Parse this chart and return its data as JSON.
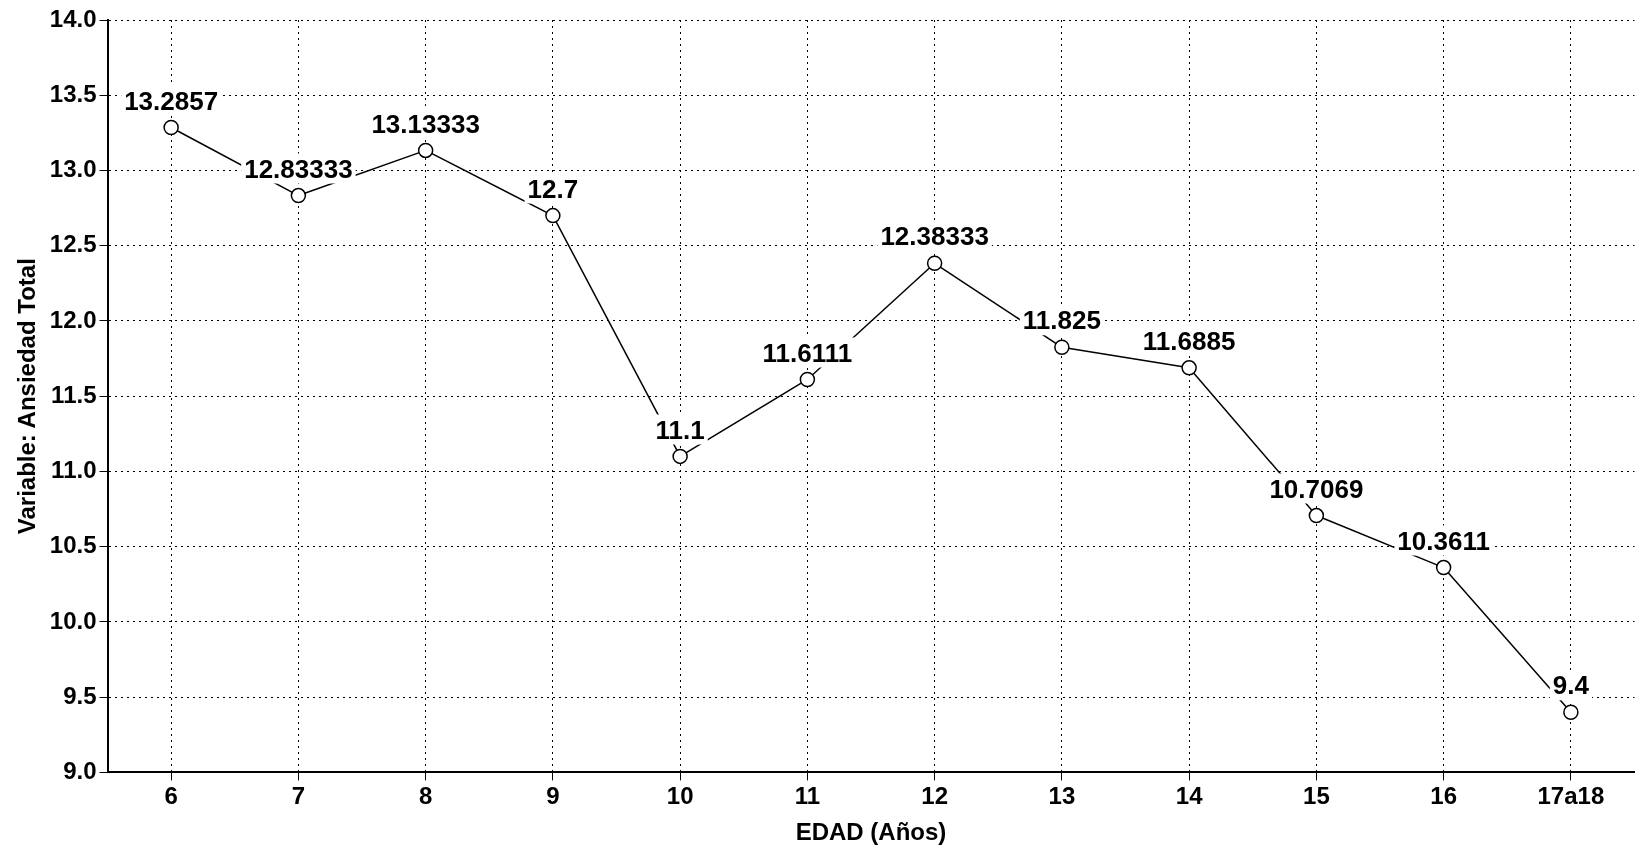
{
  "chart_data": {
    "type": "line",
    "xlabel": "EDAD (Años)",
    "ylabel": "Variable: Ansiedad Total",
    "categories": [
      "6",
      "7",
      "8",
      "9",
      "10",
      "11",
      "12",
      "13",
      "14",
      "15",
      "16",
      "17a18"
    ],
    "values": [
      13.2857,
      12.83333,
      13.13333,
      12.7,
      11.1,
      11.6111,
      12.38333,
      11.825,
      11.6885,
      10.7069,
      10.3611,
      9.4
    ],
    "color": "#000000",
    "ylim": [
      9,
      14
    ],
    "yticks": [
      {
        "value": 9,
        "label": "9.0"
      },
      {
        "value": 9.5,
        "label": "9.5"
      },
      {
        "value": 10,
        "label": "10.0"
      },
      {
        "value": 10.5,
        "label": "10.5"
      },
      {
        "value": 11,
        "label": "11.0"
      },
      {
        "value": 11.5,
        "label": "11.5"
      },
      {
        "value": 12,
        "label": "12.0"
      },
      {
        "value": 12.5,
        "label": "12.5"
      },
      {
        "value": 13,
        "label": "13.0"
      },
      {
        "value": 13.5,
        "label": "13.5"
      },
      {
        "value": 14,
        "label": "14.0"
      }
    ],
    "grid": true,
    "legend": false,
    "marker": "circle",
    "line_style": "solid",
    "data_labels": true
  }
}
